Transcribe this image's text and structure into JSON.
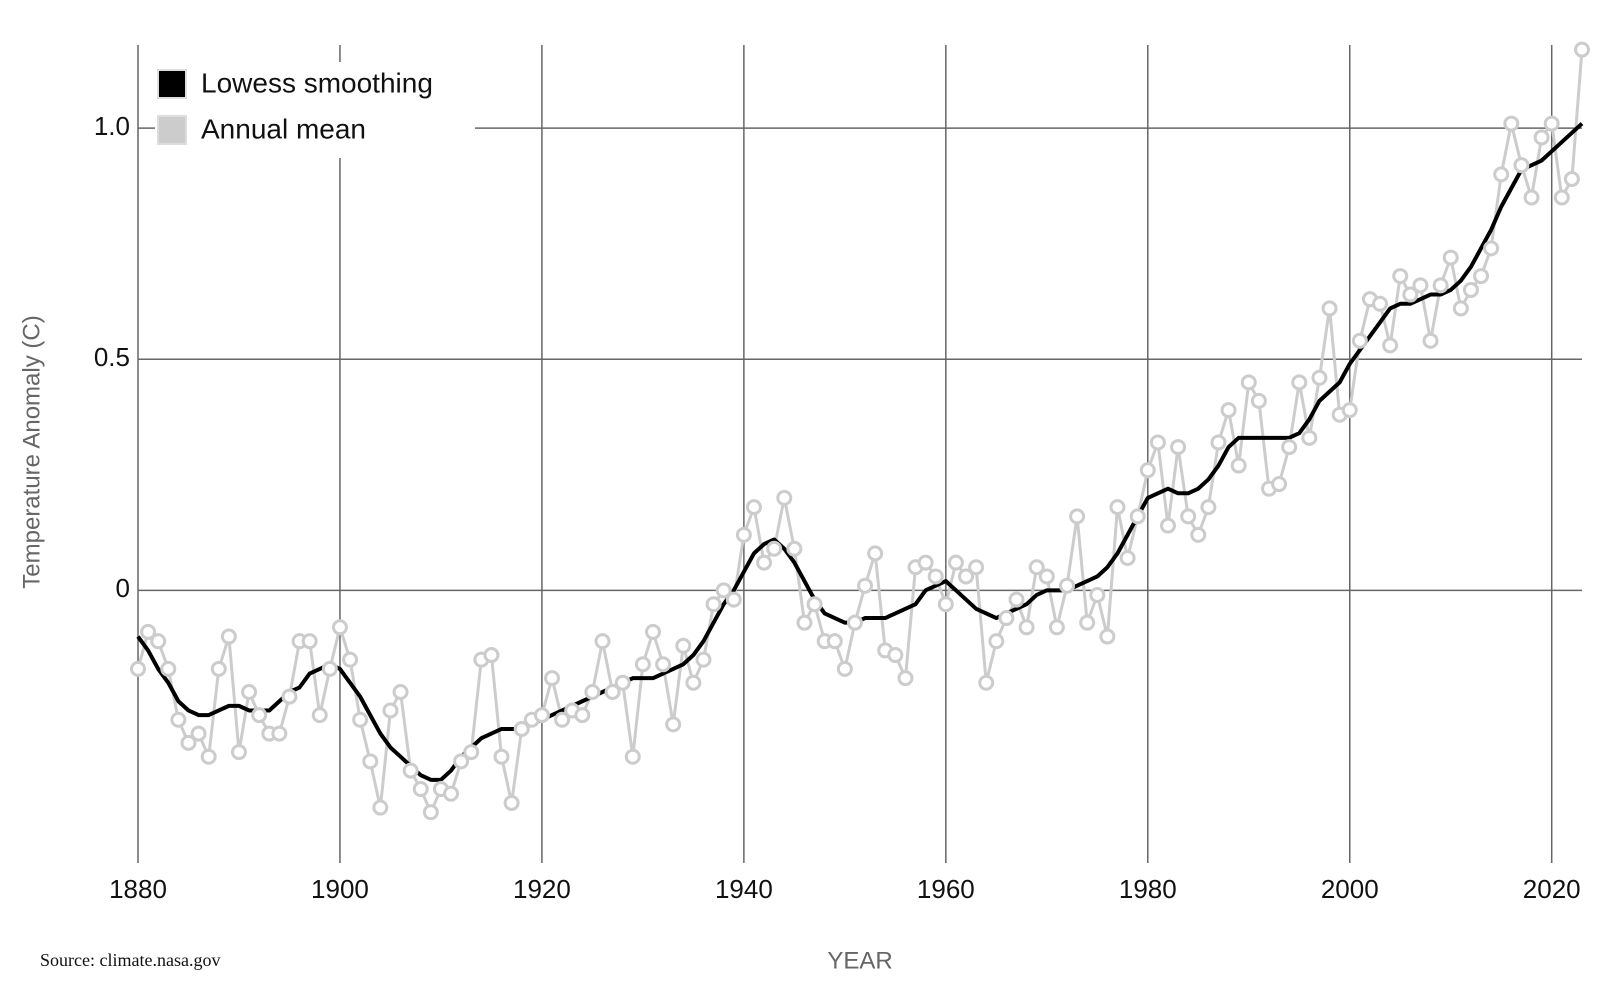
{
  "chart_data": {
    "type": "line",
    "source": "Source: climate.nasa.gov",
    "xlabel": "YEAR",
    "ylabel": "Temperature Anomaly (C)",
    "x": [
      1880,
      1881,
      1882,
      1883,
      1884,
      1885,
      1886,
      1887,
      1888,
      1889,
      1890,
      1891,
      1892,
      1893,
      1894,
      1895,
      1896,
      1897,
      1898,
      1899,
      1900,
      1901,
      1902,
      1903,
      1904,
      1905,
      1906,
      1907,
      1908,
      1909,
      1910,
      1911,
      1912,
      1913,
      1914,
      1915,
      1916,
      1917,
      1918,
      1919,
      1920,
      1921,
      1922,
      1923,
      1924,
      1925,
      1926,
      1927,
      1928,
      1929,
      1930,
      1931,
      1932,
      1933,
      1934,
      1935,
      1936,
      1937,
      1938,
      1939,
      1940,
      1941,
      1942,
      1943,
      1944,
      1945,
      1946,
      1947,
      1948,
      1949,
      1950,
      1951,
      1952,
      1953,
      1954,
      1955,
      1956,
      1957,
      1958,
      1959,
      1960,
      1961,
      1962,
      1963,
      1964,
      1965,
      1966,
      1967,
      1968,
      1969,
      1970,
      1971,
      1972,
      1973,
      1974,
      1975,
      1976,
      1977,
      1978,
      1979,
      1980,
      1981,
      1982,
      1983,
      1984,
      1985,
      1986,
      1987,
      1988,
      1989,
      1990,
      1991,
      1992,
      1993,
      1994,
      1995,
      1996,
      1997,
      1998,
      1999,
      2000,
      2001,
      2002,
      2003,
      2004,
      2005,
      2006,
      2007,
      2008,
      2009,
      2010,
      2011,
      2012,
      2013,
      2014,
      2015,
      2016,
      2017,
      2018,
      2019,
      2020,
      2021,
      2022,
      2023
    ],
    "series": [
      {
        "name": "Lowess smoothing",
        "color": "#000000",
        "markers": false,
        "values": [
          -0.1,
          -0.13,
          -0.17,
          -0.2,
          -0.24,
          -0.26,
          -0.27,
          -0.27,
          -0.26,
          -0.25,
          -0.25,
          -0.26,
          -0.26,
          -0.26,
          -0.24,
          -0.22,
          -0.21,
          -0.18,
          -0.17,
          -0.16,
          -0.17,
          -0.2,
          -0.23,
          -0.27,
          -0.31,
          -0.34,
          -0.36,
          -0.38,
          -0.4,
          -0.41,
          -0.41,
          -0.39,
          -0.36,
          -0.34,
          -0.32,
          -0.31,
          -0.3,
          -0.3,
          -0.3,
          -0.29,
          -0.28,
          -0.27,
          -0.26,
          -0.25,
          -0.24,
          -0.23,
          -0.22,
          -0.21,
          -0.2,
          -0.19,
          -0.19,
          -0.19,
          -0.18,
          -0.17,
          -0.16,
          -0.14,
          -0.11,
          -0.07,
          -0.03,
          0.0,
          0.04,
          0.08,
          0.1,
          0.11,
          0.09,
          0.06,
          0.02,
          -0.02,
          -0.05,
          -0.06,
          -0.07,
          -0.07,
          -0.06,
          -0.06,
          -0.06,
          -0.05,
          -0.04,
          -0.03,
          0.0,
          0.01,
          0.02,
          0.0,
          -0.02,
          -0.04,
          -0.05,
          -0.06,
          -0.05,
          -0.04,
          -0.03,
          -0.01,
          0.0,
          0.0,
          0.0,
          0.01,
          0.02,
          0.03,
          0.05,
          0.08,
          0.12,
          0.16,
          0.2,
          0.21,
          0.22,
          0.21,
          0.21,
          0.22,
          0.24,
          0.27,
          0.31,
          0.33,
          0.33,
          0.33,
          0.33,
          0.33,
          0.33,
          0.34,
          0.37,
          0.41,
          0.43,
          0.45,
          0.49,
          0.52,
          0.55,
          0.58,
          0.61,
          0.62,
          0.62,
          0.63,
          0.64,
          0.64,
          0.65,
          0.67,
          0.7,
          0.74,
          0.78,
          0.83,
          0.87,
          0.91,
          0.92,
          0.93,
          0.95,
          0.97,
          0.99,
          1.01
        ]
      },
      {
        "name": "Annual mean",
        "color": "#cccccc",
        "markers": true,
        "values": [
          -0.17,
          -0.09,
          -0.11,
          -0.17,
          -0.28,
          -0.33,
          -0.31,
          -0.36,
          -0.17,
          -0.1,
          -0.35,
          -0.22,
          -0.27,
          -0.31,
          -0.31,
          -0.23,
          -0.11,
          -0.11,
          -0.27,
          -0.17,
          -0.08,
          -0.15,
          -0.28,
          -0.37,
          -0.47,
          -0.26,
          -0.22,
          -0.39,
          -0.43,
          -0.48,
          -0.43,
          -0.44,
          -0.37,
          -0.35,
          -0.15,
          -0.14,
          -0.36,
          -0.46,
          -0.3,
          -0.28,
          -0.27,
          -0.19,
          -0.28,
          -0.26,
          -0.27,
          -0.22,
          -0.11,
          -0.22,
          -0.2,
          -0.36,
          -0.16,
          -0.09,
          -0.16,
          -0.29,
          -0.12,
          -0.2,
          -0.15,
          -0.03,
          0.0,
          -0.02,
          0.12,
          0.18,
          0.06,
          0.09,
          0.2,
          0.09,
          -0.07,
          -0.03,
          -0.11,
          -0.11,
          -0.17,
          -0.07,
          0.01,
          0.08,
          -0.13,
          -0.14,
          -0.19,
          0.05,
          0.06,
          0.03,
          -0.03,
          0.06,
          0.03,
          0.05,
          -0.2,
          -0.11,
          -0.06,
          -0.02,
          -0.08,
          0.05,
          0.03,
          -0.08,
          0.01,
          0.16,
          -0.07,
          -0.01,
          -0.1,
          0.18,
          0.07,
          0.16,
          0.26,
          0.32,
          0.14,
          0.31,
          0.16,
          0.12,
          0.18,
          0.32,
          0.39,
          0.27,
          0.45,
          0.41,
          0.22,
          0.23,
          0.31,
          0.45,
          0.33,
          0.46,
          0.61,
          0.38,
          0.39,
          0.54,
          0.63,
          0.62,
          0.53,
          0.68,
          0.64,
          0.66,
          0.54,
          0.66,
          0.72,
          0.61,
          0.65,
          0.68,
          0.74,
          0.9,
          1.01,
          0.92,
          0.85,
          0.98,
          1.01,
          0.85,
          0.89,
          1.17
        ]
      }
    ],
    "xlim": [
      1880,
      2023
    ],
    "xticks": [
      1880,
      1900,
      1920,
      1940,
      1960,
      1980,
      2000,
      2020
    ],
    "ylim": [
      -0.59,
      1.18
    ],
    "yticks": [
      0,
      0.5,
      {
        "value": 1,
        "label": "1.0"
      }
    ],
    "grid": true,
    "legend": "upper left"
  }
}
